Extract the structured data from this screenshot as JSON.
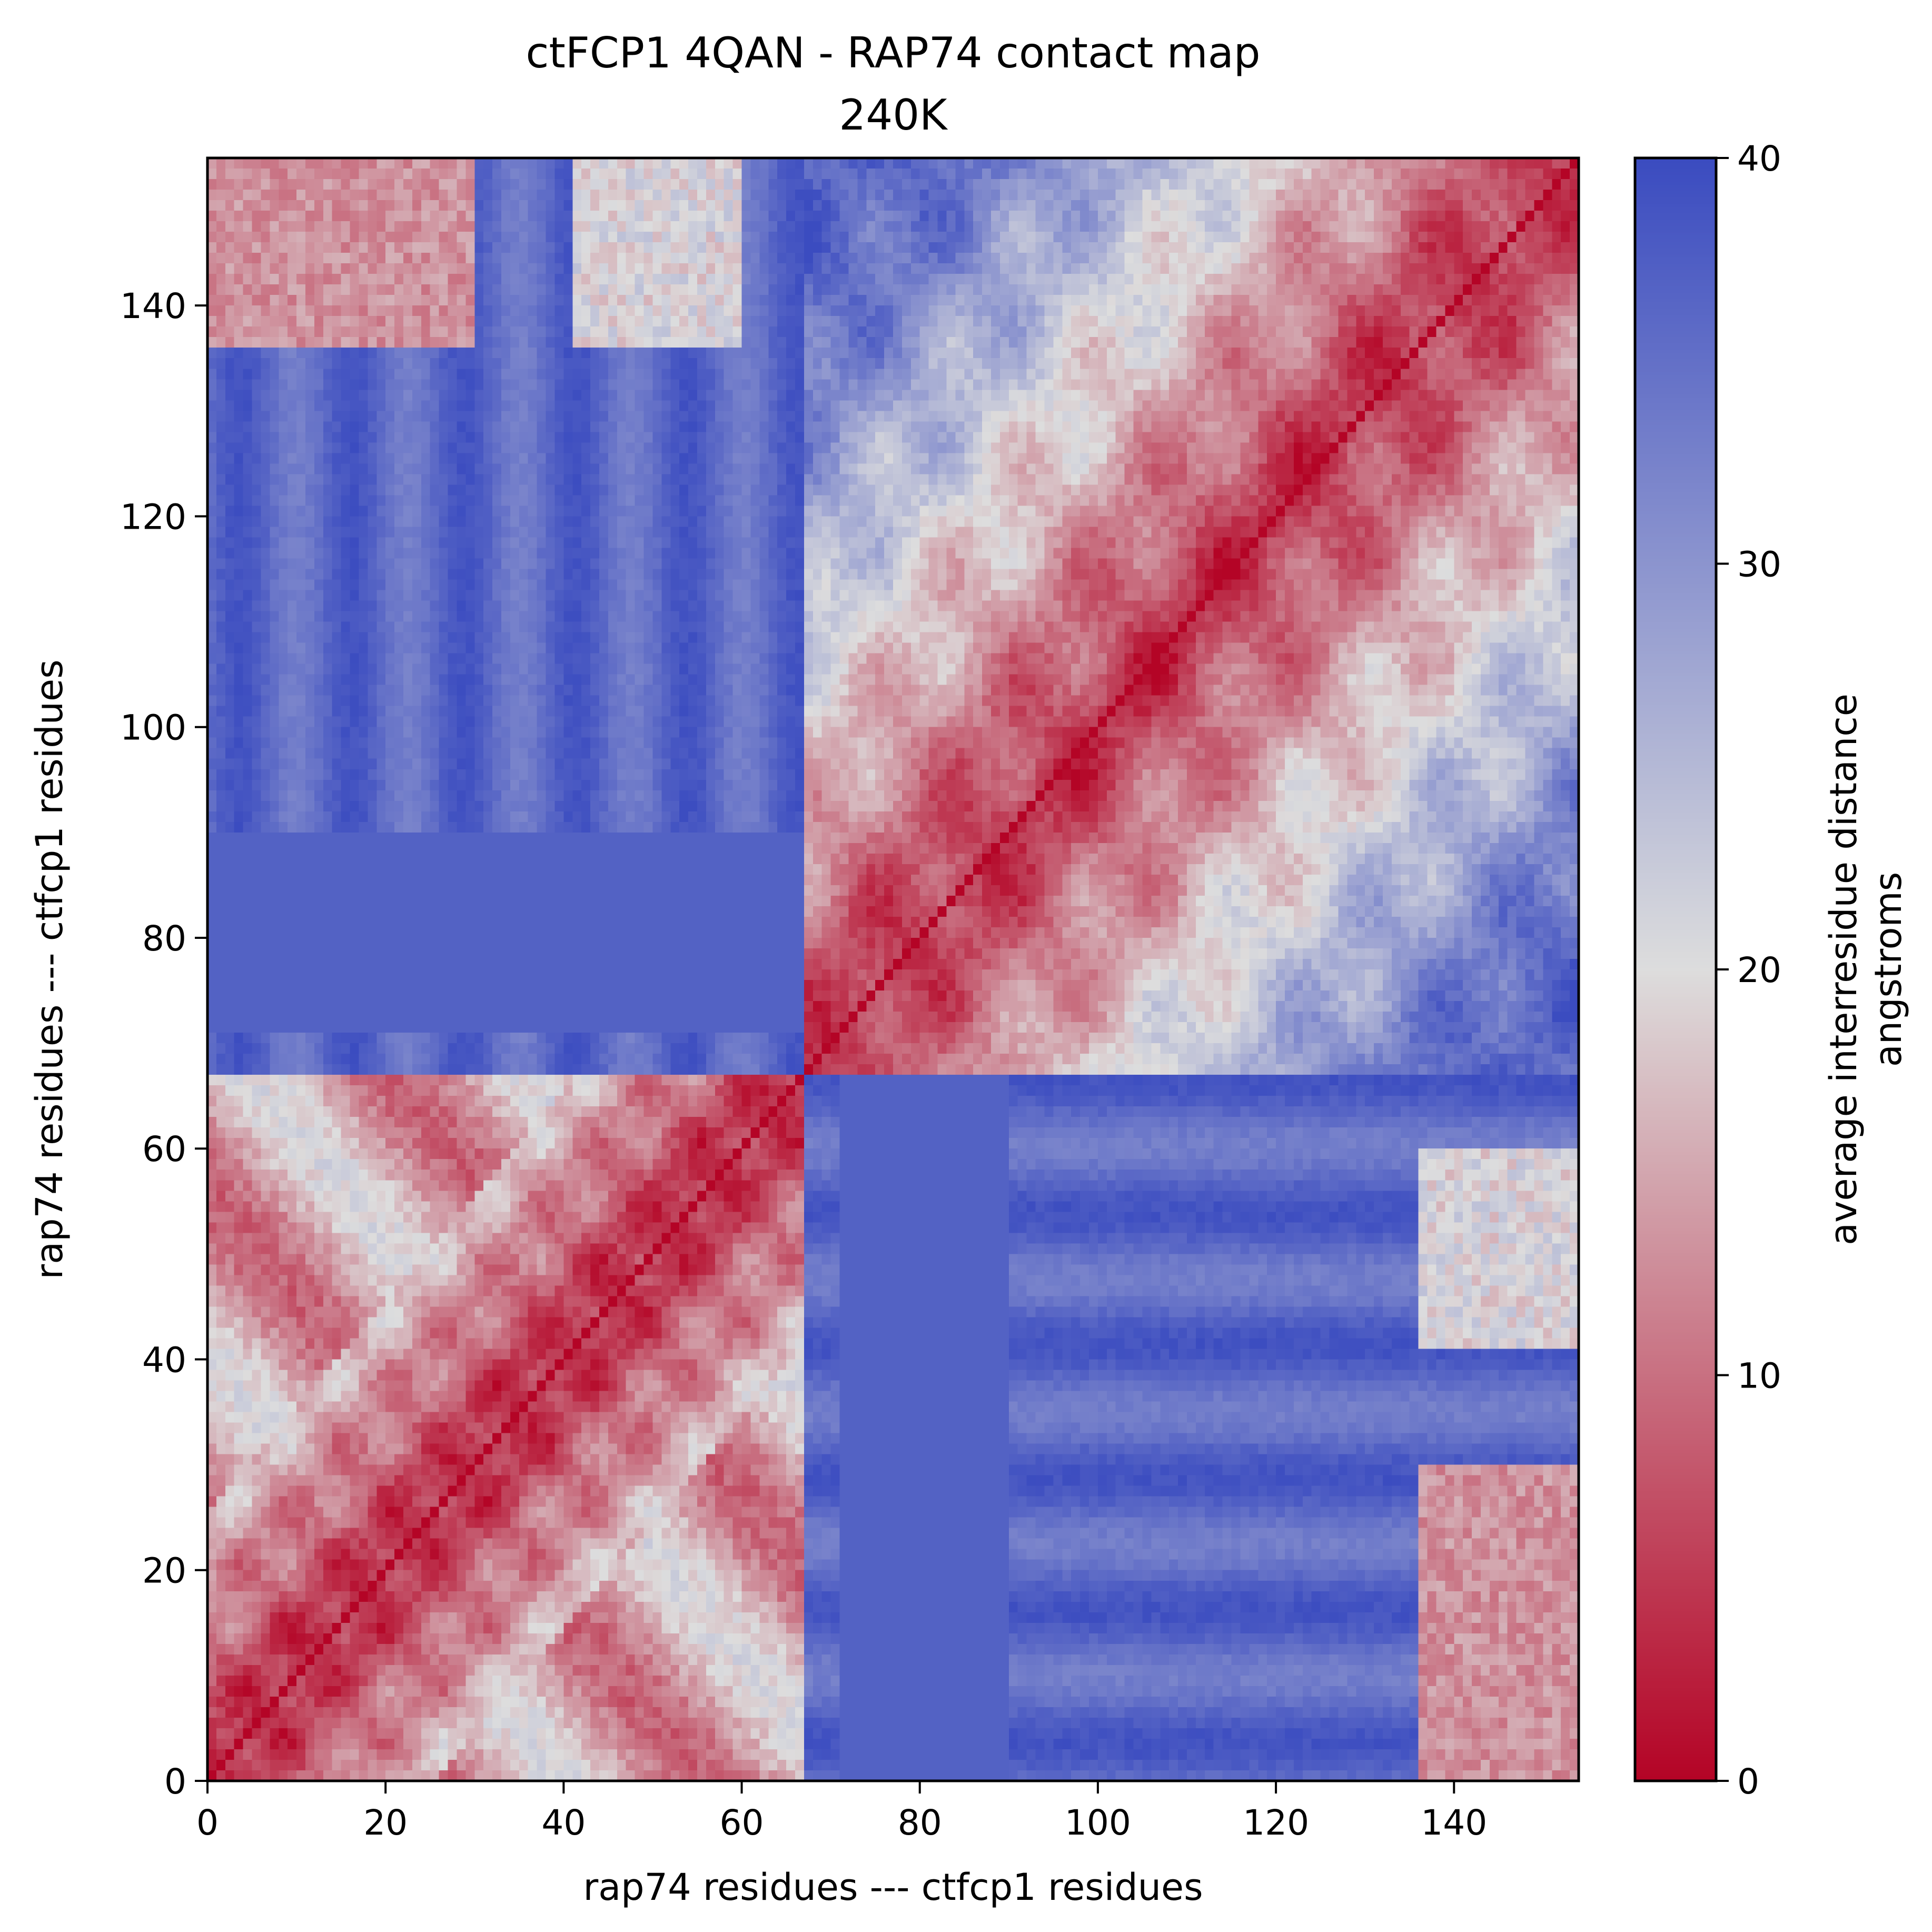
{
  "chart_data": {
    "type": "heatmap",
    "title": "ctFCP1 4QAN - RAP74 contact map",
    "subtitle": "240K",
    "xlabel": "rap74 residues --- ctfcp1 residues",
    "ylabel": "rap74 residues --- ctfcp1 residues",
    "n_residues": 154,
    "domain_boundary": 67,
    "xlim": [
      0,
      154
    ],
    "ylim": [
      0,
      154
    ],
    "x_ticks": [
      0,
      20,
      40,
      60,
      80,
      100,
      120,
      140
    ],
    "y_ticks": [
      0,
      20,
      40,
      60,
      80,
      100,
      120,
      140
    ],
    "x_tick_labels": [
      "0",
      "20",
      "40",
      "60",
      "80",
      "100",
      "120",
      "140"
    ],
    "y_tick_labels": [
      "0",
      "20",
      "40",
      "60",
      "80",
      "100",
      "120",
      "140"
    ],
    "colormap": "coolwarm_r",
    "low_color": "#b40426",
    "mid_color": "#dddddd",
    "high_color": "#3b4cc0",
    "colorbar": {
      "label_line1": "average interresidue distance",
      "label_line2": "angstroms",
      "range": [
        0,
        40
      ],
      "ticks": [
        0,
        10,
        20,
        30,
        40
      ],
      "tick_labels": [
        "0",
        "10",
        "20",
        "30",
        "40"
      ]
    },
    "regions": [
      {
        "name": "rap74-rap74",
        "x": [
          0,
          67
        ],
        "y": [
          0,
          67
        ],
        "typical_distance": 12
      },
      {
        "name": "ctfcp1-ctfcp1",
        "x": [
          67,
          154
        ],
        "y": [
          67,
          154
        ],
        "typical_distance": 24
      },
      {
        "name": "rap74-ctfcp1 upper",
        "x": [
          0,
          67
        ],
        "y": [
          67,
          154
        ],
        "typical_distance": 36
      },
      {
        "name": "ctfcp1-rap74 lower",
        "x": [
          67,
          154
        ],
        "y": [
          0,
          67
        ],
        "typical_distance": 36
      }
    ],
    "diagonal_distance": 0
  }
}
